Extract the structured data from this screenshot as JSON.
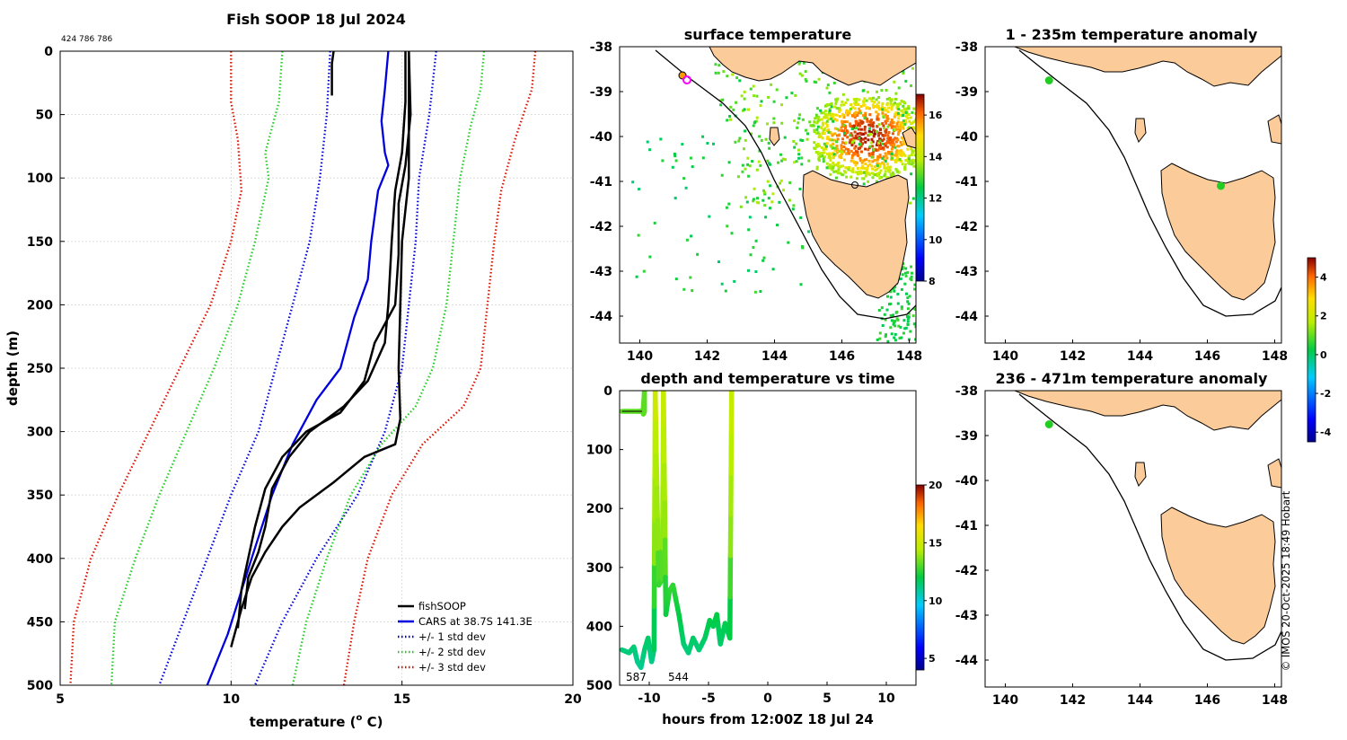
{
  "colors": {
    "fishsoop": "#000000",
    "cars": "#0000dd",
    "std1": "#0000dd",
    "std2": "#22cc22",
    "std3": "#dd1100",
    "land": "#fbcb99",
    "grid": "#d9d9d9"
  },
  "chart_data": [
    {
      "id": "profile",
      "type": "line",
      "title": "Fish SOOP 18 Jul 2024",
      "subtitle": "424 786 786",
      "xlabel": "temperature (",
      "xlabel_sup": "o",
      "xlabel_end": " C)",
      "ylabel": "depth (m)",
      "xlim": [
        5,
        20
      ],
      "ylim": [
        0,
        500
      ],
      "x_ticks": [
        "5",
        "10",
        "15",
        "20"
      ],
      "y_ticks": [
        "0",
        "50",
        "100",
        "150",
        "200",
        "250",
        "300",
        "350",
        "400",
        "450",
        "500"
      ],
      "legend": [
        "fishSOOP",
        "CARS at 38.7S 141.3E",
        "+/- 1 std dev",
        "+/- 2 std dev",
        "+/- 3 std dev"
      ],
      "legend_position": "bottom-right",
      "series": [
        {
          "name": "fishSOOP cast 1",
          "points": [
            [
              13.0,
              0
            ],
            [
              12.95,
              10
            ],
            [
              12.95,
              35
            ]
          ]
        },
        {
          "name": "fishSOOP cast 2",
          "points": [
            [
              15.1,
              0
            ],
            [
              15.1,
              40
            ],
            [
              15.0,
              80
            ],
            [
              14.8,
              110
            ],
            [
              14.7,
              150
            ],
            [
              14.6,
              200
            ],
            [
              14.5,
              230
            ],
            [
              14.0,
              260
            ],
            [
              13.3,
              280
            ],
            [
              12.3,
              300
            ],
            [
              11.7,
              320
            ],
            [
              11.2,
              345
            ],
            [
              11.0,
              375
            ],
            [
              10.8,
              395
            ],
            [
              10.5,
              415
            ],
            [
              10.4,
              440
            ]
          ]
        },
        {
          "name": "fishSOOP cast 3",
          "points": [
            [
              15.2,
              0
            ],
            [
              15.25,
              50
            ],
            [
              15.1,
              90
            ],
            [
              14.9,
              120
            ],
            [
              14.9,
              160
            ],
            [
              14.8,
              200
            ],
            [
              14.2,
              230
            ],
            [
              13.9,
              260
            ],
            [
              13.2,
              285
            ],
            [
              12.2,
              300
            ],
            [
              11.5,
              320
            ],
            [
              11.0,
              345
            ],
            [
              10.7,
              375
            ],
            [
              10.5,
              400
            ],
            [
              10.3,
              425
            ],
            [
              10.2,
              455
            ]
          ]
        },
        {
          "name": "fishSOOP cast 4",
          "points": [
            [
              15.2,
              0
            ],
            [
              15.2,
              60
            ],
            [
              15.2,
              100
            ],
            [
              15.0,
              150
            ],
            [
              14.95,
              200
            ],
            [
              14.9,
              250
            ],
            [
              14.95,
              290
            ],
            [
              14.8,
              310
            ],
            [
              13.9,
              320
            ],
            [
              13.0,
              340
            ],
            [
              12.0,
              360
            ],
            [
              11.5,
              375
            ],
            [
              11.0,
              395
            ],
            [
              10.6,
              415
            ],
            [
              10.3,
              440
            ],
            [
              10.0,
              470
            ]
          ]
        },
        {
          "name": "CARS",
          "points": [
            [
              14.6,
              0
            ],
            [
              14.5,
              30
            ],
            [
              14.4,
              55
            ],
            [
              14.5,
              80
            ],
            [
              14.6,
              90
            ],
            [
              14.3,
              110
            ],
            [
              14.1,
              150
            ],
            [
              14.0,
              180
            ],
            [
              13.6,
              210
            ],
            [
              13.2,
              250
            ],
            [
              12.5,
              275
            ],
            [
              11.8,
              310
            ],
            [
              11.2,
              350
            ],
            [
              10.6,
              400
            ],
            [
              9.9,
              460
            ],
            [
              9.3,
              500
            ]
          ]
        },
        {
          "name": "std1 low",
          "points": [
            [
              12.9,
              0
            ],
            [
              12.8,
              50
            ],
            [
              12.6,
              100
            ],
            [
              12.3,
              150
            ],
            [
              11.8,
              200
            ],
            [
              11.3,
              250
            ],
            [
              10.8,
              300
            ],
            [
              10.0,
              350
            ],
            [
              9.3,
              400
            ],
            [
              8.6,
              450
            ],
            [
              7.9,
              500
            ]
          ]
        },
        {
          "name": "std1 high",
          "points": [
            [
              16.0,
              0
            ],
            [
              15.8,
              50
            ],
            [
              15.5,
              100
            ],
            [
              15.4,
              150
            ],
            [
              15.2,
              200
            ],
            [
              15.0,
              250
            ],
            [
              14.5,
              300
            ],
            [
              13.7,
              350
            ],
            [
              12.5,
              400
            ],
            [
              11.5,
              450
            ],
            [
              10.7,
              500
            ]
          ]
        },
        {
          "name": "std2 low",
          "points": [
            [
              11.5,
              0
            ],
            [
              11.4,
              40
            ],
            [
              11.0,
              80
            ],
            [
              11.1,
              100
            ],
            [
              10.7,
              150
            ],
            [
              10.2,
              200
            ],
            [
              9.5,
              250
            ],
            [
              8.7,
              300
            ],
            [
              7.9,
              350
            ],
            [
              7.2,
              400
            ],
            [
              6.6,
              450
            ],
            [
              6.5,
              500
            ]
          ]
        },
        {
          "name": "std2 high",
          "points": [
            [
              17.4,
              0
            ],
            [
              17.3,
              30
            ],
            [
              17.0,
              60
            ],
            [
              16.7,
              100
            ],
            [
              16.5,
              150
            ],
            [
              16.3,
              200
            ],
            [
              15.9,
              250
            ],
            [
              15.4,
              280
            ],
            [
              14.4,
              310
            ],
            [
              13.5,
              350
            ],
            [
              12.8,
              400
            ],
            [
              12.2,
              450
            ],
            [
              11.8,
              500
            ]
          ]
        },
        {
          "name": "std3 low",
          "points": [
            [
              10.0,
              0
            ],
            [
              10.0,
              40
            ],
            [
              10.2,
              70
            ],
            [
              10.3,
              110
            ],
            [
              10.0,
              150
            ],
            [
              9.4,
              200
            ],
            [
              8.5,
              250
            ],
            [
              7.6,
              300
            ],
            [
              6.7,
              350
            ],
            [
              5.9,
              400
            ],
            [
              5.4,
              450
            ],
            [
              5.3,
              500
            ]
          ]
        },
        {
          "name": "std3 high",
          "points": [
            [
              18.9,
              0
            ],
            [
              18.8,
              30
            ],
            [
              18.3,
              70
            ],
            [
              17.9,
              110
            ],
            [
              17.7,
              150
            ],
            [
              17.5,
              200
            ],
            [
              17.3,
              250
            ],
            [
              16.8,
              280
            ],
            [
              15.6,
              310
            ],
            [
              14.7,
              350
            ],
            [
              14.0,
              400
            ],
            [
              13.6,
              450
            ],
            [
              13.3,
              500
            ]
          ]
        }
      ]
    },
    {
      "id": "sst",
      "type": "heatmap",
      "title": "surface temperature",
      "x_ticks": [
        "140",
        "142",
        "144",
        "146",
        "148"
      ],
      "y_ticks": [
        "-38",
        "-39",
        "-40",
        "-41",
        "-42",
        "-43",
        "-44"
      ],
      "xlim": [
        139.4,
        148.2
      ],
      "ylim": [
        -44.6,
        -38
      ],
      "colorbar_ticks": [
        "8",
        "10",
        "12",
        "14",
        "16"
      ],
      "colorbar_range": [
        8,
        17
      ]
    },
    {
      "id": "timeseries",
      "type": "line",
      "title": "depth and temperature vs time",
      "xlabel": "hours from 12:00Z 18 Jul 24",
      "xlim": [
        -12.5,
        12.5
      ],
      "ylim": [
        0,
        500
      ],
      "x_ticks": [
        "-10",
        "-5",
        "0",
        "5",
        "10"
      ],
      "y_ticks": [
        "0",
        "100",
        "200",
        "300",
        "400",
        "500"
      ],
      "colorbar_ticks": [
        "5",
        "10",
        "15",
        "20"
      ],
      "colorbar_range": [
        4,
        20
      ],
      "annotations": [
        "587",
        "544"
      ],
      "series": [
        {
          "name": "depth trace",
          "points": [
            [
              -12.3,
              35
            ],
            [
              -10.9,
              35
            ],
            [
              -10.6,
              35
            ],
            [
              -10.5,
              30
            ],
            [
              -10.4,
              0
            ],
            [
              -10.4,
              35
            ],
            [
              -10.5,
              40
            ]
          ]
        },
        {
          "name": "depth trace 2",
          "points": [
            [
              -12.3,
              440
            ],
            [
              -11.7,
              445
            ],
            [
              -11.3,
              435
            ],
            [
              -11.0,
              460
            ],
            [
              -10.7,
              470
            ],
            [
              -10.4,
              440
            ],
            [
              -10.1,
              420
            ],
            [
              -9.8,
              460
            ],
            [
              -9.6,
              440
            ],
            [
              -9.5,
              0
            ],
            [
              -9.2,
              330
            ],
            [
              -8.9,
              320
            ],
            [
              -8.8,
              0
            ],
            [
              -8.6,
              380
            ],
            [
              -8.3,
              340
            ],
            [
              -8.0,
              330
            ],
            [
              -7.5,
              380
            ],
            [
              -7.1,
              430
            ],
            [
              -6.7,
              445
            ],
            [
              -6.3,
              420
            ],
            [
              -5.8,
              440
            ],
            [
              -5.3,
              420
            ],
            [
              -4.9,
              390
            ],
            [
              -4.6,
              400
            ],
            [
              -4.3,
              380
            ],
            [
              -4.0,
              430
            ],
            [
              -3.6,
              395
            ],
            [
              -3.2,
              420
            ],
            [
              -3.05,
              0
            ]
          ]
        }
      ]
    },
    {
      "id": "anom1",
      "type": "heatmap",
      "title": "1 - 235m temperature anomaly",
      "x_ticks": [
        "140",
        "142",
        "144",
        "146",
        "148"
      ],
      "y_ticks": [
        "-38",
        "-39",
        "-40",
        "-41",
        "-42",
        "-43",
        "-44"
      ],
      "xlim": [
        139.4,
        148.2
      ],
      "ylim": [
        -44.6,
        -38
      ],
      "points": [
        [
          141.3,
          -38.75
        ],
        [
          146.4,
          -41.1
        ]
      ]
    },
    {
      "id": "anom2",
      "type": "heatmap",
      "title": "236 - 471m temperature anomaly",
      "x_ticks": [
        "140",
        "142",
        "144",
        "146",
        "148"
      ],
      "y_ticks": [
        "-38",
        "-39",
        "-40",
        "-41",
        "-42",
        "-43",
        "-44"
      ],
      "xlim": [
        139.4,
        148.2
      ],
      "ylim": [
        -44.6,
        -38
      ],
      "points": [
        [
          141.3,
          -38.75
        ]
      ]
    },
    {
      "id": "anomaly-colorbar",
      "type": "heatmap",
      "colorbar_ticks": [
        "4",
        "2",
        "0",
        "-2",
        "-4"
      ],
      "colorbar_range": [
        -4.5,
        5
      ]
    }
  ],
  "footer": {
    "credit": "© IMOS 20-Oct-2025 18:49 Hobart"
  }
}
